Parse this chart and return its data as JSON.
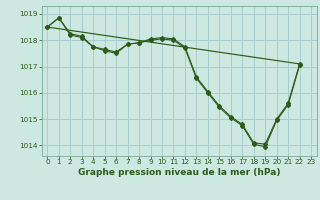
{
  "title": "Graphe pression niveau de la mer (hPa)",
  "background_color": "#cce8e0",
  "grid_color": "#aacccc",
  "line_color": "#2d5a1b",
  "xlim": [
    -0.5,
    23.5
  ],
  "ylim": [
    1013.6,
    1019.3
  ],
  "yticks": [
    1014,
    1015,
    1016,
    1017,
    1018,
    1019
  ],
  "xticks": [
    0,
    1,
    2,
    3,
    4,
    5,
    6,
    7,
    8,
    9,
    10,
    11,
    12,
    13,
    14,
    15,
    16,
    17,
    18,
    19,
    20,
    21,
    22,
    23
  ],
  "series_jagged1": [
    1018.5,
    1018.85,
    1018.2,
    1018.1,
    1017.75,
    1017.6,
    1017.5,
    1017.85,
    1017.9,
    1018.05,
    1018.1,
    1018.05,
    1017.75,
    1016.6,
    1016.05,
    1015.5,
    1015.1,
    1014.8,
    1014.1,
    1014.05,
    1015.0,
    1015.6,
    1017.1,
    null
  ],
  "series_jagged2": [
    1018.5,
    1018.85,
    1018.25,
    1018.15,
    1017.75,
    1017.65,
    1017.55,
    1017.85,
    1017.9,
    1018.0,
    1018.05,
    1018.0,
    1017.7,
    1016.55,
    1016.0,
    1015.45,
    1015.05,
    1014.75,
    1014.05,
    1013.95,
    1014.95,
    1015.55,
    1017.05,
    null
  ],
  "straight_line_x": [
    0,
    22
  ],
  "straight_line_y": [
    1018.5,
    1017.1
  ],
  "xlabel_fontsize": 6.5,
  "tick_fontsize": 5.2
}
